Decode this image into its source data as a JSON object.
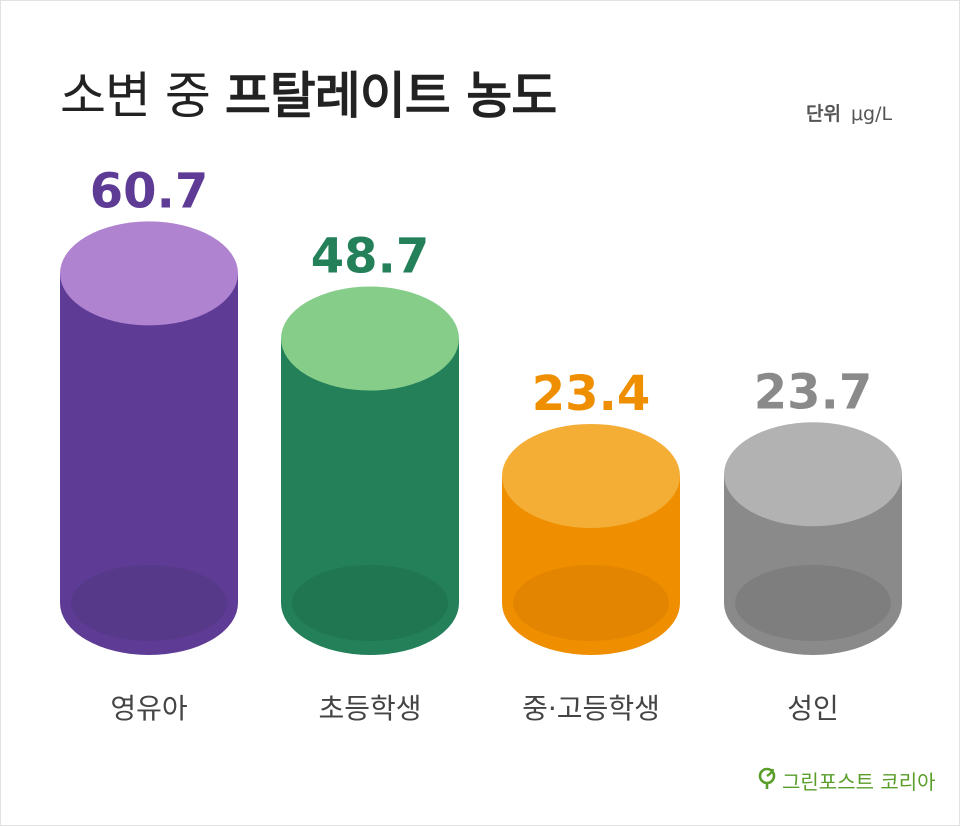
{
  "title": {
    "prefix": "소변 중",
    "emphasis": "프탈레이트 농도"
  },
  "unit": {
    "label": "단위",
    "value": "μg/L"
  },
  "brand": {
    "name": "그린포스트 코리아",
    "icon": "leaf-pin-icon",
    "color": "#5a9e2a"
  },
  "chart_data": {
    "type": "bar",
    "style": "3d-cylinder",
    "categories": [
      "영유아",
      "초등학생",
      "중·고등학생",
      "성인"
    ],
    "values": [
      60.7,
      48.7,
      23.4,
      23.7
    ],
    "data_labels": [
      "60.7",
      "48.7",
      "23.4",
      "23.7"
    ],
    "colors": [
      {
        "body": "#5e3c96",
        "top": "#b083d1",
        "bottom": "#553887",
        "label": "#5e3c96"
      },
      {
        "body": "#238059",
        "top": "#86cd8a",
        "bottom": "#1f744f",
        "label": "#238059"
      },
      {
        "body": "#ef8f00",
        "top": "#f5ae35",
        "bottom": "#e08400",
        "label": "#ef8f00"
      },
      {
        "body": "#8a8a8a",
        "top": "#b2b2b2",
        "bottom": "#7b7b7b",
        "label": "#8a8a8a"
      }
    ],
    "grid": false,
    "legend": "none"
  }
}
